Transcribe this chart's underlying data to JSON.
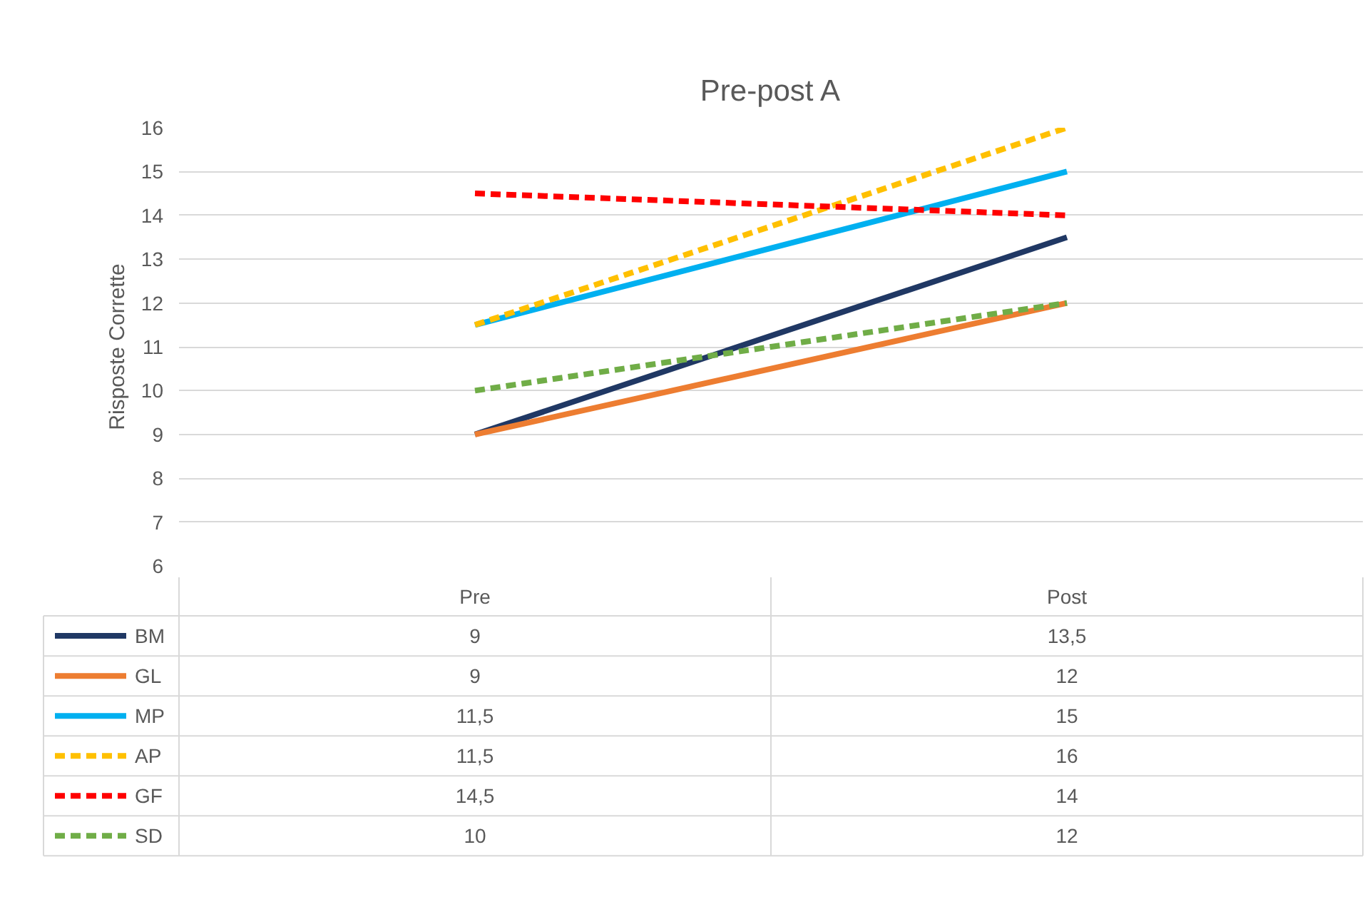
{
  "chart_data": {
    "type": "line",
    "title": "Pre-post A",
    "ylabel": "Risposte Corrette",
    "categories": [
      "Pre",
      "Post"
    ],
    "ylim": [
      6,
      16
    ],
    "yticks": [
      6,
      7,
      8,
      9,
      10,
      11,
      12,
      13,
      14,
      15,
      16
    ],
    "grid": "y",
    "legend": "bottom",
    "tick_labels": "y",
    "series": [
      {
        "name": "BM",
        "color": "#203864",
        "values": [
          9,
          13.5
        ],
        "value_labels": [
          "9",
          "13,5"
        ],
        "line_style": "solid"
      },
      {
        "name": "GL",
        "color": "#ed7d31",
        "values": [
          9,
          12
        ],
        "value_labels": [
          "9",
          "12"
        ],
        "line_style": "solid"
      },
      {
        "name": "MP",
        "color": "#00b0f0",
        "values": [
          11.5,
          15
        ],
        "value_labels": [
          "11,5",
          "15"
        ],
        "line_style": "solid"
      },
      {
        "name": "AP",
        "color": "#ffc000",
        "values": [
          11.5,
          16
        ],
        "value_labels": [
          "11,5",
          "16"
        ],
        "line_style": "dashed"
      },
      {
        "name": "GF",
        "color": "#ff0000",
        "values": [
          14.5,
          14
        ],
        "value_labels": [
          "14,5",
          "14"
        ],
        "line_style": "dashed"
      },
      {
        "name": "SD",
        "color": "#70ad47",
        "values": [
          10,
          12
        ],
        "value_labels": [
          "10",
          "12"
        ],
        "line_style": "dashed"
      }
    ]
  }
}
